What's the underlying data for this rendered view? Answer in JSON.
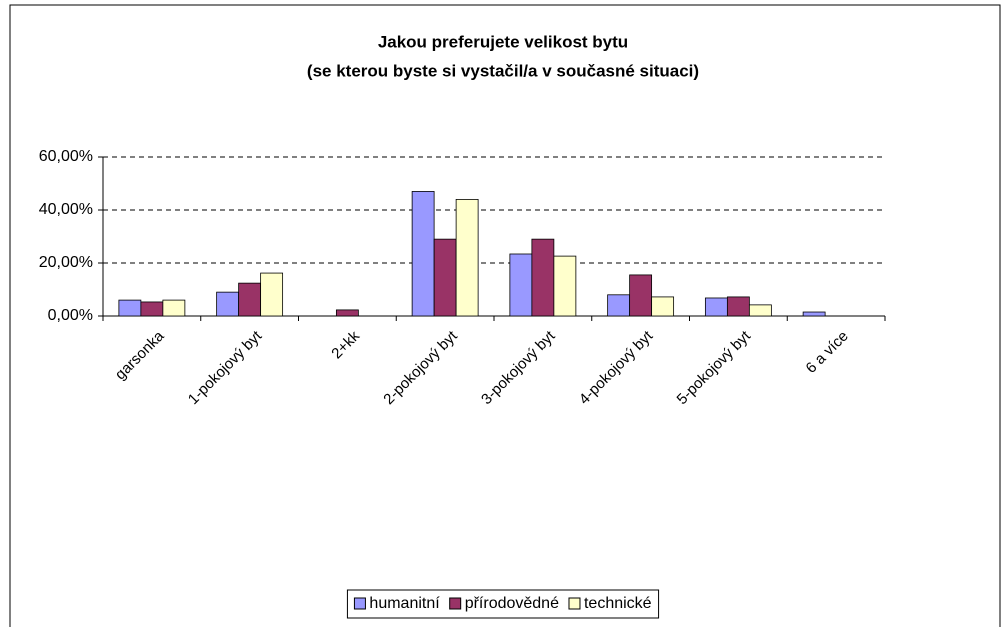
{
  "chart_data": {
    "type": "bar",
    "title": "Jakou preferujete velikost bytu",
    "subtitle": "(se kterou byste si vystačil/a v současné situaci)",
    "categories": [
      "garsonka",
      "1-pokojový byt",
      "2+kk",
      "2-pokojový byt",
      "3-pokojový byt",
      "4-pokojový byt",
      "5-pokojový byt",
      "6 a více"
    ],
    "series": [
      {
        "name": "humanitní",
        "color": "#9999ff",
        "values": [
          6,
          9,
          0,
          47,
          23.4,
          8,
          6.8,
          1.5
        ]
      },
      {
        "name": "přírodovědné",
        "color": "#993366",
        "values": [
          5.3,
          12.4,
          2.3,
          29,
          29,
          15.5,
          7.2,
          0
        ]
      },
      {
        "name": "technické",
        "color": "#ffffcc",
        "values": [
          6,
          16.2,
          0,
          44,
          22.6,
          7.2,
          4.2,
          0
        ]
      }
    ],
    "ylim": [
      0,
      60
    ],
    "yticks": [
      {
        "value": 0,
        "label": "0,00%"
      },
      {
        "value": 20,
        "label": "20,00%"
      },
      {
        "value": 40,
        "label": "40,00%"
      },
      {
        "value": 60,
        "label": "60,00%"
      }
    ],
    "grid": true,
    "legend": "bottom"
  }
}
